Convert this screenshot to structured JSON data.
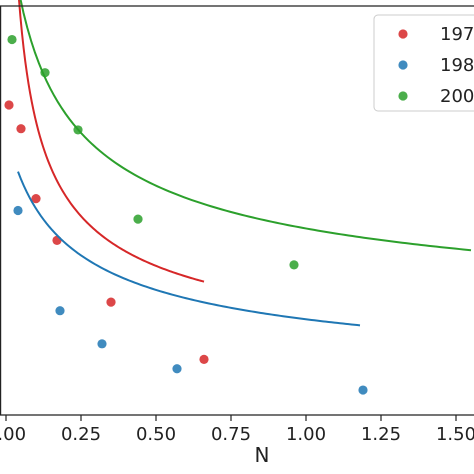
{
  "chart_data": {
    "type": "scatter",
    "xlabel": "N",
    "ylabel": "",
    "title": "",
    "xlim": [
      -0.02,
      1.55
    ],
    "ylim": [
      0.0,
      1.0
    ],
    "x_ticks": [
      0.0,
      0.25,
      0.5,
      0.75,
      1.0,
      1.25,
      1.5
    ],
    "x_tick_labels": [
      "0.00",
      "0.25",
      "0.50",
      "0.75",
      "1.00",
      "1.25",
      "1.50"
    ],
    "grid": false,
    "legend_position": "top-right",
    "series": [
      {
        "name": "197",
        "color": "#d62728",
        "points": [
          {
            "x": 0.01,
            "y": 0.758
          },
          {
            "x": 0.05,
            "y": 0.7
          },
          {
            "x": 0.1,
            "y": 0.529
          },
          {
            "x": 0.17,
            "y": 0.427
          },
          {
            "x": 0.35,
            "y": 0.276
          },
          {
            "x": 0.66,
            "y": 0.136
          }
        ],
        "fit": {
          "x_start": 0.01,
          "x_end": 0.66,
          "a": 0.2145,
          "b": 0.0075,
          "c": 0.0635
        }
      },
      {
        "name": "198",
        "color": "#1f77b4",
        "points": [
          {
            "x": 0.04,
            "y": 0.5
          },
          {
            "x": 0.18,
            "y": 0.255
          },
          {
            "x": 0.32,
            "y": 0.174
          },
          {
            "x": 0.57,
            "y": 0.113
          },
          {
            "x": 1.19,
            "y": 0.061
          }
        ],
        "fit": {
          "x_start": 0.04,
          "x_end": 1.18,
          "a": 0.2142,
          "b": 0.1038,
          "c": 0.0302
        }
      },
      {
        "name": "200",
        "color": "#2ca02c",
        "points": [
          {
            "x": 0.02,
            "y": 0.918
          },
          {
            "x": 0.13,
            "y": 0.837
          },
          {
            "x": 0.24,
            "y": 0.697
          },
          {
            "x": 0.44,
            "y": 0.479
          },
          {
            "x": 0.96,
            "y": 0.367
          }
        ],
        "fit": {
          "x_start": 0.02,
          "x_end": 1.55,
          "a": 0.2945,
          "b": 0.0734,
          "c": 0.1718
        }
      }
    ]
  }
}
